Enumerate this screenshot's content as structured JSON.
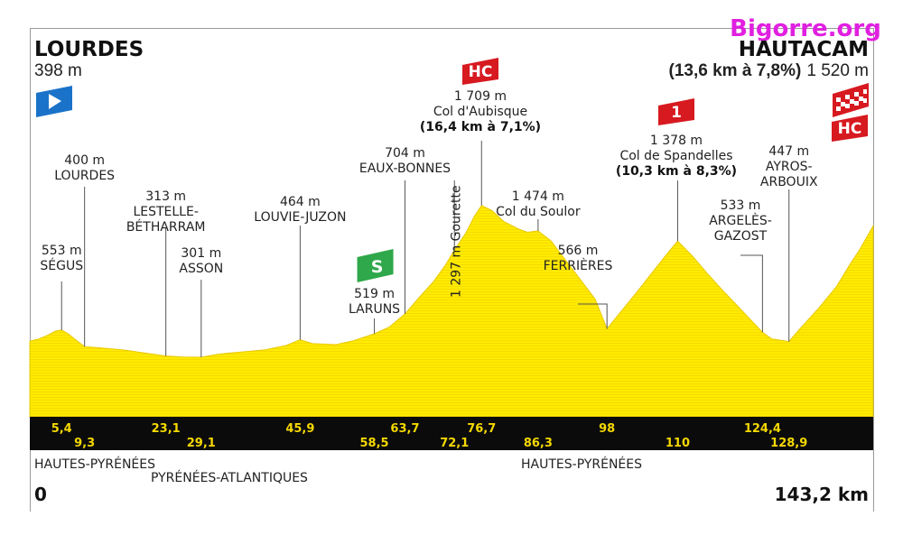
{
  "watermark": "Bigorre.org",
  "start": {
    "name": "LOURDES",
    "altitude": "398 m"
  },
  "finish": {
    "name": "HAUTACAM",
    "climb": "(13,6 km à 7,8%)",
    "altitude": "1 520 m"
  },
  "distance_start": "0",
  "distance_end": "143,2 km",
  "colors": {
    "profile": "#ffec00",
    "profile_edge": "#e9c800",
    "strip": "#0b0b0b",
    "km_text": "#f5d800",
    "hc": "#d71920",
    "sprint": "#2ea84a",
    "start_flag": "#1a73c9"
  },
  "chart_data": {
    "type": "area",
    "xlim": [
      0,
      143.2
    ],
    "ylim": [
      0,
      1800
    ],
    "profile": [
      [
        0,
        450
      ],
      [
        1.5,
        470
      ],
      [
        3,
        505
      ],
      [
        4.4,
        545
      ],
      [
        5.4,
        553
      ],
      [
        6.5,
        520
      ],
      [
        7.6,
        470
      ],
      [
        9.3,
        400
      ],
      [
        12,
        388
      ],
      [
        16,
        368
      ],
      [
        20,
        336
      ],
      [
        23.1,
        313
      ],
      [
        26,
        304
      ],
      [
        29.1,
        301
      ],
      [
        32,
        330
      ],
      [
        35,
        346
      ],
      [
        40,
        370
      ],
      [
        43.5,
        410
      ],
      [
        45.9,
        464
      ],
      [
        48,
        428
      ],
      [
        52,
        418
      ],
      [
        55,
        455
      ],
      [
        58.5,
        519
      ],
      [
        61,
        580
      ],
      [
        63.7,
        704
      ],
      [
        66,
        850
      ],
      [
        68.5,
        1000
      ],
      [
        70.5,
        1150
      ],
      [
        72.1,
        1297
      ],
      [
        74,
        1450
      ],
      [
        75.5,
        1610
      ],
      [
        76.7,
        1709
      ],
      [
        78.5,
        1660
      ],
      [
        80.5,
        1560
      ],
      [
        83,
        1490
      ],
      [
        84.5,
        1460
      ],
      [
        86.3,
        1474
      ],
      [
        88.5,
        1380
      ],
      [
        91,
        1200
      ],
      [
        93.5,
        1020
      ],
      [
        96,
        840
      ],
      [
        98,
        566
      ],
      [
        100,
        700
      ],
      [
        103,
        900
      ],
      [
        106,
        1110
      ],
      [
        108.5,
        1280
      ],
      [
        110,
        1378
      ],
      [
        112.5,
        1240
      ],
      [
        115,
        1080
      ],
      [
        118,
        900
      ],
      [
        121,
        730
      ],
      [
        124.4,
        533
      ],
      [
        126,
        470
      ],
      [
        128.9,
        447
      ],
      [
        131,
        580
      ],
      [
        134,
        760
      ],
      [
        137,
        960
      ],
      [
        139,
        1140
      ],
      [
        141,
        1310
      ],
      [
        143.2,
        1520
      ]
    ],
    "passages": [
      {
        "name": "SÉGUS",
        "alt": "553 m",
        "km": 5.4,
        "km_label": "5,4"
      },
      {
        "name": "LOURDES",
        "alt": "400 m",
        "km": 9.3,
        "km_label": "9,3"
      },
      {
        "name": "LESTELLE-\nBÉTHARRAM",
        "alt": "313 m",
        "km": 23.1,
        "km_label": "23,1"
      },
      {
        "name": "ASSON",
        "alt": "301 m",
        "km": 29.1,
        "km_label": "29,1"
      },
      {
        "name": "LOUVIE-JUZON",
        "alt": "464 m",
        "km": 45.9,
        "km_label": "45,9"
      },
      {
        "name": "LARUNS",
        "alt": "519 m",
        "km": 58.5,
        "km_label": "58,5"
      },
      {
        "name": "EAUX-BONNES",
        "alt": "704 m",
        "km": 63.7,
        "km_label": "63,7"
      },
      {
        "name": "Gourette",
        "alt": "1 297 m",
        "km": 72.1,
        "km_label": "72,1"
      },
      {
        "name": "Col d'Aubisque",
        "alt": "1 709 m",
        "climb": "(16,4 km à 7,1%)",
        "km": 76.7,
        "km_label": "76,7"
      },
      {
        "name": "Col du Soulor",
        "alt": "1 474 m",
        "km": 86.3,
        "km_label": "86,3"
      },
      {
        "name": "FERRIÈRES",
        "alt": "566 m",
        "km": 98,
        "km_label": "98"
      },
      {
        "name": "Col de Spandelles",
        "alt": "1 378 m",
        "climb": "(10,3 km à 8,3%)",
        "km": 110,
        "km_label": "110"
      },
      {
        "name": "ARGELÈS-\nGAZOST",
        "alt": "533 m",
        "km": 124.4,
        "km_label": "124,4"
      },
      {
        "name": "AYROS-\nARBOUIX",
        "alt": "447 m",
        "km": 128.9,
        "km_label": "128,9"
      }
    ],
    "climb_categories": [
      {
        "label": "HC",
        "km": 76.7
      },
      {
        "label": "1",
        "km": 110
      },
      {
        "label": "HC",
        "km": 143.2
      }
    ],
    "sprint": {
      "label": "S",
      "km": 58.5
    },
    "departments": [
      {
        "name": "HAUTES-PYRÉNÉES"
      },
      {
        "name": "PYRÉNÉES-ATLANTIQUES"
      },
      {
        "name": "HAUTES-PYRÉNÉES"
      }
    ]
  }
}
